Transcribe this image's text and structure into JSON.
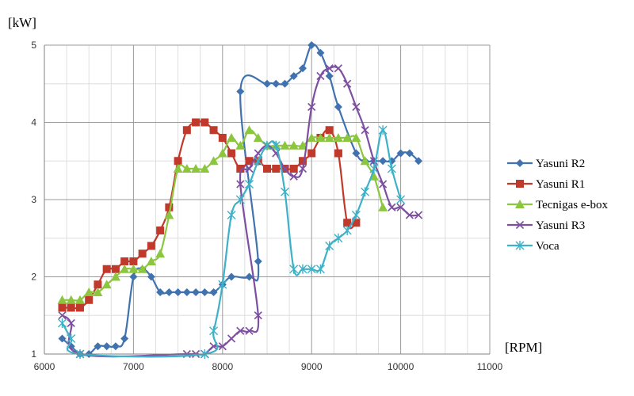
{
  "chart_data": {
    "type": "line",
    "ylabel": "[kW]",
    "xlabel": "[RPM]",
    "xlim": [
      6000,
      11000
    ],
    "ylim": [
      1,
      5
    ],
    "xticks": [
      6000,
      7000,
      8000,
      9000,
      10000,
      11000
    ],
    "yticks": [
      1,
      2,
      3,
      4,
      5
    ],
    "grid": true,
    "legend_position": "right",
    "series": [
      {
        "name": "Yasuni R2",
        "color": "#3f72af",
        "marker": "diamond",
        "points": [
          [
            6200,
            1.2
          ],
          [
            6300,
            1.1
          ],
          [
            6400,
            1.0
          ],
          [
            6500,
            1.0
          ],
          [
            6600,
            1.1
          ],
          [
            6700,
            1.1
          ],
          [
            6800,
            1.1
          ],
          [
            6900,
            1.2
          ],
          [
            7000,
            2.0
          ],
          [
            7100,
            2.1
          ],
          [
            7200,
            2.0
          ],
          [
            7300,
            1.8
          ],
          [
            7400,
            1.8
          ],
          [
            7500,
            1.8
          ],
          [
            7600,
            1.8
          ],
          [
            7700,
            1.8
          ],
          [
            7800,
            1.8
          ],
          [
            7900,
            1.8
          ],
          [
            8000,
            1.9
          ],
          [
            8100,
            2.0
          ],
          [
            8300,
            2.0
          ],
          [
            8400,
            2.2
          ],
          [
            8200,
            4.4
          ],
          [
            8500,
            4.5
          ],
          [
            8600,
            4.5
          ],
          [
            8700,
            4.5
          ],
          [
            8800,
            4.6
          ],
          [
            8900,
            4.7
          ],
          [
            9000,
            5.0
          ],
          [
            9100,
            4.9
          ],
          [
            9200,
            4.6
          ],
          [
            9300,
            4.2
          ],
          [
            9500,
            3.6
          ],
          [
            9600,
            3.5
          ],
          [
            9700,
            3.5
          ],
          [
            9800,
            3.5
          ],
          [
            9900,
            3.5
          ],
          [
            10000,
            3.6
          ],
          [
            10100,
            3.6
          ],
          [
            10200,
            3.5
          ]
        ]
      },
      {
        "name": "Yasuni R1",
        "color": "#c0392b",
        "marker": "square",
        "points": [
          [
            6200,
            1.6
          ],
          [
            6300,
            1.6
          ],
          [
            6400,
            1.6
          ],
          [
            6500,
            1.7
          ],
          [
            6600,
            1.9
          ],
          [
            6700,
            2.1
          ],
          [
            6800,
            2.1
          ],
          [
            6900,
            2.2
          ],
          [
            7000,
            2.2
          ],
          [
            7100,
            2.3
          ],
          [
            7200,
            2.4
          ],
          [
            7300,
            2.6
          ],
          [
            7400,
            2.9
          ],
          [
            7500,
            3.5
          ],
          [
            7600,
            3.9
          ],
          [
            7700,
            4.0
          ],
          [
            7800,
            4.0
          ],
          [
            7900,
            3.9
          ],
          [
            8000,
            3.8
          ],
          [
            8100,
            3.6
          ],
          [
            8200,
            3.4
          ],
          [
            8300,
            3.5
          ],
          [
            8400,
            3.5
          ],
          [
            8500,
            3.4
          ],
          [
            8600,
            3.4
          ],
          [
            8700,
            3.4
          ],
          [
            8800,
            3.4
          ],
          [
            8900,
            3.5
          ],
          [
            9000,
            3.6
          ],
          [
            9100,
            3.8
          ],
          [
            9200,
            3.9
          ],
          [
            9300,
            3.6
          ],
          [
            9400,
            2.7
          ],
          [
            9500,
            2.7
          ]
        ]
      },
      {
        "name": "Tecnigas e-box",
        "color": "#8cc63f",
        "marker": "triangle",
        "points": [
          [
            6200,
            1.7
          ],
          [
            6300,
            1.7
          ],
          [
            6400,
            1.7
          ],
          [
            6500,
            1.8
          ],
          [
            6600,
            1.8
          ],
          [
            6700,
            1.9
          ],
          [
            6800,
            2.0
          ],
          [
            6900,
            2.1
          ],
          [
            7000,
            2.1
          ],
          [
            7100,
            2.1
          ],
          [
            7200,
            2.2
          ],
          [
            7300,
            2.3
          ],
          [
            7400,
            2.8
          ],
          [
            7500,
            3.4
          ],
          [
            7600,
            3.4
          ],
          [
            7700,
            3.4
          ],
          [
            7800,
            3.4
          ],
          [
            7900,
            3.5
          ],
          [
            8000,
            3.6
          ],
          [
            8100,
            3.8
          ],
          [
            8200,
            3.7
          ],
          [
            8300,
            3.9
          ],
          [
            8400,
            3.8
          ],
          [
            8500,
            3.7
          ],
          [
            8600,
            3.7
          ],
          [
            8700,
            3.7
          ],
          [
            8800,
            3.7
          ],
          [
            8900,
            3.7
          ],
          [
            9000,
            3.8
          ],
          [
            9100,
            3.8
          ],
          [
            9200,
            3.8
          ],
          [
            9300,
            3.8
          ],
          [
            9400,
            3.8
          ],
          [
            9500,
            3.8
          ],
          [
            9600,
            3.5
          ],
          [
            9700,
            3.3
          ],
          [
            9800,
            2.9
          ]
        ]
      },
      {
        "name": "Yasuni R3",
        "color": "#7d4fa0",
        "marker": "x",
        "points": [
          [
            6200,
            1.5
          ],
          [
            6300,
            1.4
          ],
          [
            6400,
            1.0
          ],
          [
            7600,
            1.0
          ],
          [
            7700,
            1.0
          ],
          [
            7800,
            1.0
          ],
          [
            7900,
            1.1
          ],
          [
            8000,
            1.1
          ],
          [
            8100,
            1.2
          ],
          [
            8200,
            1.3
          ],
          [
            8300,
            1.3
          ],
          [
            8400,
            1.5
          ],
          [
            8200,
            3.2
          ],
          [
            8300,
            3.4
          ],
          [
            8400,
            3.6
          ],
          [
            8500,
            3.7
          ],
          [
            8600,
            3.6
          ],
          [
            8700,
            3.4
          ],
          [
            8800,
            3.3
          ],
          [
            8900,
            3.4
          ],
          [
            9000,
            4.2
          ],
          [
            9100,
            4.6
          ],
          [
            9200,
            4.7
          ],
          [
            9300,
            4.7
          ],
          [
            9400,
            4.5
          ],
          [
            9500,
            4.2
          ],
          [
            9600,
            3.9
          ],
          [
            9700,
            3.5
          ],
          [
            9800,
            3.2
          ],
          [
            9900,
            2.9
          ],
          [
            10000,
            2.9
          ],
          [
            10100,
            2.8
          ],
          [
            10200,
            2.8
          ]
        ]
      },
      {
        "name": "Voca",
        "color": "#3db1c8",
        "marker": "star",
        "points": [
          [
            6200,
            1.4
          ],
          [
            6300,
            1.2
          ],
          [
            6400,
            1.0
          ],
          [
            7800,
            1.0
          ],
          [
            7900,
            1.3
          ],
          [
            8000,
            1.9
          ],
          [
            8100,
            2.8
          ],
          [
            8200,
            3.0
          ],
          [
            8300,
            3.2
          ],
          [
            8400,
            3.5
          ],
          [
            8500,
            3.7
          ],
          [
            8600,
            3.7
          ],
          [
            8700,
            3.1
          ],
          [
            8800,
            2.1
          ],
          [
            8900,
            2.1
          ],
          [
            9000,
            2.1
          ],
          [
            9100,
            2.1
          ],
          [
            9200,
            2.4
          ],
          [
            9300,
            2.5
          ],
          [
            9400,
            2.6
          ],
          [
            9500,
            2.8
          ],
          [
            9600,
            3.1
          ],
          [
            9700,
            3.4
          ],
          [
            9800,
            3.9
          ],
          [
            9900,
            3.4
          ],
          [
            10000,
            3.0
          ]
        ]
      }
    ]
  }
}
